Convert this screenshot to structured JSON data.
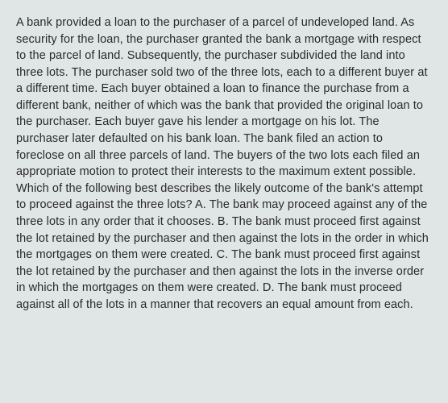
{
  "question": {
    "body": "A bank provided a loan to the purchaser of a parcel of undeveloped land. As security for the loan, the purchaser granted the bank a mortgage with respect to the parcel of land. Subsequently, the purchaser subdivided the land into three lots. The purchaser sold two of the three lots, each to a different buyer at a different time. Each buyer obtained a loan to finance the purchase from a different bank, neither of which was the bank that provided the original loan to the purchaser. Each buyer gave his lender a mortgage on his lot. The purchaser later defaulted on his bank loan. The bank filed an action to foreclose on all three parcels of land. The buyers of the two lots each filed an appropriate motion to protect their interests to the maximum extent possible. Which of the following best describes the likely outcome of the bank's attempt to proceed against the three lots? A. The bank may proceed against any of the three lots in any order that it chooses. B. The bank must proceed first against the lot retained by the purchaser and then against the lots in the order in which the mortgages on them were created. C. The bank must proceed first against the lot retained by the purchaser and then against the lots in the inverse order in which the mortgages on them were created. D. The bank must proceed against all of the lots in a manner that recovers an equal amount from each."
  }
}
